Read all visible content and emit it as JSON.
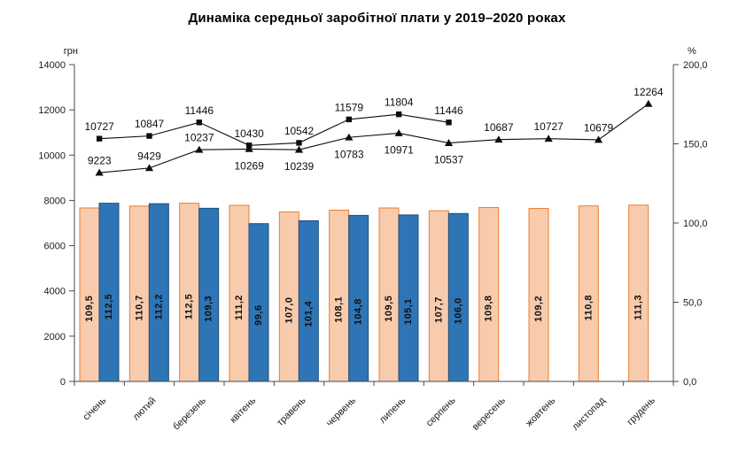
{
  "title": "Динаміка середньої заробітної плати у 2019–2020 роках",
  "chart_data": {
    "type": "bar",
    "subtype": "combo-bar-line-dual-axis",
    "categories": [
      "січень",
      "лютий",
      "березень",
      "квітень",
      "травень",
      "червень",
      "липень",
      "серпень",
      "вересень",
      "жовтень",
      "листопад",
      "грудень"
    ],
    "left_axis": {
      "label": "грн",
      "min": 0,
      "max": 14000,
      "step": 2000,
      "tick_labels": [
        "0",
        "2000",
        "4000",
        "6000",
        "8000",
        "10000",
        "12000",
        "14000"
      ]
    },
    "right_axis": {
      "label": "%",
      "min": 0,
      "max": 200,
      "step": 50,
      "tick_labels": [
        "0,0",
        "50,0",
        "100,0",
        "150,0",
        "200,0"
      ]
    },
    "grid": "off",
    "legend": "none",
    "bar_series": [
      {
        "name": "2019-growth-percent",
        "axis": "right",
        "fill": "#F8CBAD",
        "stroke": "#ED7D31",
        "values": [
          109.5,
          110.7,
          112.5,
          111.2,
          107.0,
          108.1,
          109.5,
          107.7,
          109.8,
          109.2,
          110.8,
          111.3
        ],
        "labels": [
          "109,5",
          "110,7",
          "112,5",
          "111,2",
          "107,0",
          "108,1",
          "109,5",
          "107,7",
          "109,8",
          "109,2",
          "110,8",
          "111,3"
        ]
      },
      {
        "name": "2020-growth-percent",
        "axis": "right",
        "fill": "#2E75B6",
        "stroke": "#1F4E79",
        "values": [
          112.5,
          112.2,
          109.3,
          99.6,
          101.4,
          104.8,
          105.1,
          106.0,
          null,
          null,
          null,
          null
        ],
        "labels": [
          "112,5",
          "112,2",
          "109,3",
          "99,6",
          "101,4",
          "104,8",
          "105,1",
          "106,0",
          null,
          null,
          null,
          null
        ]
      }
    ],
    "line_series": [
      {
        "name": "2019-salary-uah",
        "axis": "left",
        "marker": "triangle",
        "color": "#0d0d0d",
        "values": [
          9223,
          9429,
          10237,
          10269,
          10239,
          10783,
          10971,
          10537,
          10687,
          10727,
          10679,
          12264
        ],
        "label_side": [
          "above",
          "above",
          "above",
          "below",
          "below",
          "below",
          "below",
          "below",
          "above",
          "above",
          "above",
          "above"
        ]
      },
      {
        "name": "2020-salary-uah",
        "axis": "left",
        "marker": "square",
        "color": "#0d0d0d",
        "values": [
          10727,
          10847,
          11446,
          10430,
          10542,
          11579,
          11804,
          11446,
          null,
          null,
          null,
          null
        ],
        "label_side": [
          "above",
          "above",
          "above",
          "above",
          "above",
          "above",
          "above",
          "above",
          null,
          null,
          null,
          null
        ]
      }
    ]
  }
}
